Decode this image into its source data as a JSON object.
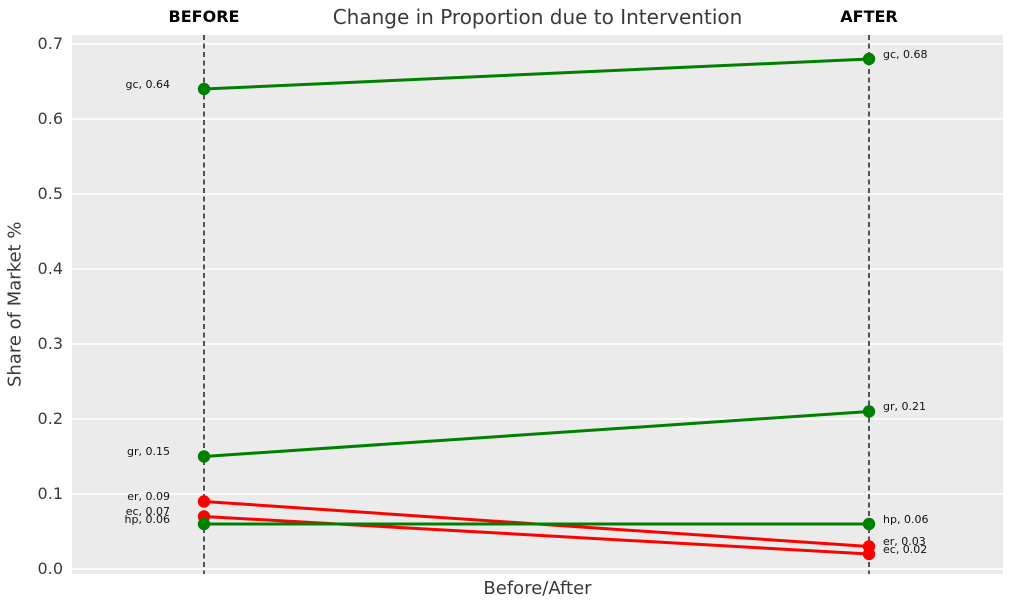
{
  "figure": {
    "title": "Change in Proportion due to Intervention",
    "xlabel": "Before/After",
    "ylabel": "Share of Market %",
    "header_before": "BEFORE",
    "header_after": "AFTER"
  },
  "chart_data": {
    "type": "line",
    "subtype": "slopegraph",
    "title": "Change in Proportion due to Intervention",
    "xlabel": "Before/After",
    "ylabel": "Share of Market %",
    "categories": [
      "BEFORE",
      "AFTER"
    ],
    "ylim": [
      -0.0067,
      0.712
    ],
    "yticks": [
      0.0,
      0.1,
      0.2,
      0.3,
      0.4,
      0.5,
      0.6,
      0.7
    ],
    "ytick_labels": [
      "0.0",
      "0.1",
      "0.2",
      "0.3",
      "0.4",
      "0.5",
      "0.6",
      "0.7"
    ],
    "grid": true,
    "plot_background": "#ebebeb",
    "gridline_color": "#ffffff",
    "category_line_style": "dashed",
    "category_line_color": "#000000",
    "increase_color": "#008000",
    "decrease_color": "#ff0000",
    "series": [
      {
        "name": "gc",
        "values": [
          0.64,
          0.68
        ],
        "color": "#008000",
        "label_before": "gc, 0.64",
        "label_after": "gc, 0.68"
      },
      {
        "name": "gr",
        "values": [
          0.15,
          0.21
        ],
        "color": "#008000",
        "label_before": "gr, 0.15",
        "label_after": "gr, 0.21"
      },
      {
        "name": "er",
        "values": [
          0.09,
          0.03
        ],
        "color": "#ff0000",
        "label_before": "er, 0.09",
        "label_after": "er, 0.03"
      },
      {
        "name": "ec",
        "values": [
          0.07,
          0.02
        ],
        "color": "#ff0000",
        "label_before": "ec, 0.07",
        "label_after": "ec, 0.02"
      },
      {
        "name": "hp",
        "values": [
          0.06,
          0.06
        ],
        "color": "#008000",
        "label_before": "hp, 0.06",
        "label_after": "hp, 0.06"
      }
    ]
  }
}
